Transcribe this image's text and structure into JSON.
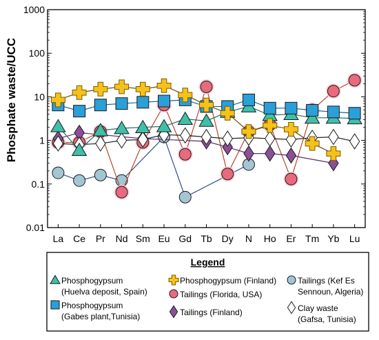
{
  "chart_data": {
    "type": "scatter",
    "ylabel": "Phosphate waste/UCC",
    "y_scale": "log",
    "ylim": [
      0.01,
      1000
    ],
    "y_ticks": [
      "0.01",
      "0.1",
      "1",
      "10",
      "100",
      "1000"
    ],
    "categories": [
      "La",
      "Ce",
      "Pr",
      "Nd",
      "Sm",
      "Eu",
      "Gd",
      "Tb",
      "Dy",
      "N",
      "Ho",
      "Er",
      "Tm",
      "Yb",
      "Lu"
    ],
    "legend": {
      "title": "Legend",
      "placement": "bottom"
    },
    "series": [
      {
        "key": "tailings-kef",
        "name": "Tailings (Kef Es Sennoun, Algeria)",
        "legend_lines": [
          "Tailings (Kef Es",
          "Sennoun, Algeria)"
        ],
        "marker": "circle",
        "color": "#a3c6d4",
        "values": [
          0.18,
          0.12,
          0.16,
          0.12,
          null,
          1.2,
          0.05,
          null,
          null,
          0.28,
          null,
          null,
          null,
          null,
          null
        ]
      },
      {
        "key": "tailings-florida",
        "name": "Tailings (Florida, USA)",
        "legend_lines": [
          "Tailings (Florida, USA)"
        ],
        "marker": "circle",
        "color": "#e86a7c",
        "values": [
          0.9,
          0.9,
          1.6,
          0.065,
          0.9,
          6.5,
          0.48,
          17,
          0.17,
          1.6,
          2.3,
          0.13,
          5,
          13.5,
          24
        ]
      },
      {
        "key": "tailings-finland",
        "name": "Tailings (Finland)",
        "legend_lines": [
          "Tailings (Finland)"
        ],
        "marker": "diamond",
        "color": "#8b4f9a",
        "values": [
          1.1,
          1.5,
          null,
          null,
          1.1,
          null,
          null,
          0.95,
          0.7,
          0.5,
          0.5,
          0.45,
          null,
          0.3,
          null
        ]
      },
      {
        "key": "clay-waste",
        "name": "Clay waste (Gafsa, Tunisia)",
        "legend_lines": [
          "Clay waste",
          "(Gafsa, Tunisia)"
        ],
        "marker": "diamond",
        "color": "#ffffff",
        "values": [
          0.85,
          0.8,
          0.85,
          1.0,
          1.05,
          1.35,
          1.3,
          1.2,
          1.1,
          1.15,
          1.1,
          1.05,
          1.15,
          1.2,
          0.95
        ]
      },
      {
        "key": "pg-huelva",
        "name": "Phosphogypsum (Huelva deposit, Spain)",
        "legend_lines": [
          "Phosphogypsum",
          "(Huelva deposit, Spain)"
        ],
        "marker": "triangle",
        "color": "#3fbfa8",
        "values": [
          2.1,
          0.6,
          1.7,
          1.9,
          2.0,
          2.1,
          3.1,
          2.8,
          4.5,
          6.0,
          3.8,
          4.0,
          3.3,
          3.3,
          3.2
        ]
      },
      {
        "key": "pg-gabes",
        "name": "Phosphogypsum (Gabes plant,Tunisia)",
        "legend_lines": [
          "Phosphogypsum",
          "(Gabes plant,Tunisia)"
        ],
        "marker": "square",
        "color": "#2a9fd8",
        "values": [
          6.5,
          4.7,
          6.5,
          7.0,
          7.5,
          8.0,
          8.5,
          6.0,
          6.0,
          8.5,
          5.5,
          5.5,
          4.9,
          4.5,
          4.2
        ]
      },
      {
        "key": "pg-finland",
        "name": "Phosphogypsum (Finland)",
        "legend_lines": [
          "Phosphogypsum (Finland)"
        ],
        "marker": "cross",
        "color": "#f6c21a",
        "values": [
          8.5,
          12.5,
          15,
          17,
          15,
          18,
          11,
          6.5,
          4.2,
          1.6,
          2.2,
          1.8,
          0.85,
          0.5,
          null
        ]
      }
    ]
  }
}
